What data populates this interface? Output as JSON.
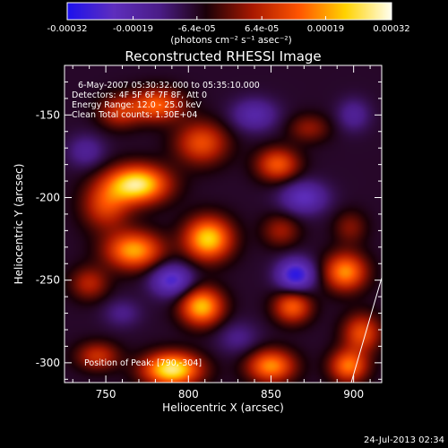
{
  "chart_data": {
    "type": "heatmap",
    "title": "Reconstructed RHESSI Image",
    "xlabel": "Heliocentric X (arcsec)",
    "ylabel": "Heliocentric Y (arcsec)",
    "xlim": [
      725,
      917
    ],
    "ylim": [
      -312,
      -120
    ],
    "x_ticks": [
      750,
      800,
      850,
      900
    ],
    "y_ticks": [
      -300,
      -250,
      -200,
      -150
    ],
    "colorbar": {
      "min": -0.00032,
      "max": 0.00032,
      "tick_labels": [
        "-0.00032",
        "-0.00019",
        "-6.4e-05",
        "6.4e-05",
        "0.00019",
        "0.00032"
      ],
      "unit_label": "(photons cm⁻² s⁻¹ asec⁻²)",
      "stops": [
        "#1c10ee",
        "#5e2ebe",
        "#4a1c86",
        "#1a0008",
        "#a81800",
        "#ff5400",
        "#ffd200",
        "#fffff0"
      ]
    },
    "annotations": [
      "6-May-2007 05:30:32.000 to 05:35:10.000",
      "Detectors: 4F 5F 6F 7F 8F, Att 0",
      "Energy Range: 12.0 - 25.0 keV",
      "Clean     Total counts: 1.30E+04"
    ],
    "peak_label": "Position of Peak: [790,-304]",
    "peak": [
      790,
      -304
    ],
    "sources": [
      {
        "x": 769,
        "y": -192,
        "v": 0.00032,
        "sx": 13,
        "sy": 8
      },
      {
        "x": 750,
        "y": -205,
        "v": 0.00014,
        "sx": 10,
        "sy": 10
      },
      {
        "x": 781,
        "y": -144,
        "v": 0.00018,
        "sx": 11,
        "sy": 7
      },
      {
        "x": 758,
        "y": -148,
        "v": 0.00011,
        "sx": 9,
        "sy": 7
      },
      {
        "x": 808,
        "y": -167,
        "v": 0.00016,
        "sx": 11,
        "sy": 9
      },
      {
        "x": 854,
        "y": -180,
        "v": 0.00017,
        "sx": 9,
        "sy": 7
      },
      {
        "x": 873,
        "y": -158,
        "v": 7e-05,
        "sx": 9,
        "sy": 6
      },
      {
        "x": 812,
        "y": -225,
        "v": 0.00028,
        "sx": 10,
        "sy": 9
      },
      {
        "x": 767,
        "y": -232,
        "v": 0.00024,
        "sx": 12,
        "sy": 8
      },
      {
        "x": 856,
        "y": -220,
        "v": 8e-05,
        "sx": 8,
        "sy": 7
      },
      {
        "x": 898,
        "y": -218,
        "v": 6e-05,
        "sx": 7,
        "sy": 7
      },
      {
        "x": 895,
        "y": -245,
        "v": 0.00022,
        "sx": 9,
        "sy": 8
      },
      {
        "x": 740,
        "y": -252,
        "v": 0.0001,
        "sx": 8,
        "sy": 7
      },
      {
        "x": 808,
        "y": -266,
        "v": 0.00026,
        "sx": 9,
        "sy": 8
      },
      {
        "x": 863,
        "y": -266,
        "v": 0.00018,
        "sx": 8,
        "sy": 7
      },
      {
        "x": 905,
        "y": -282,
        "v": 0.00016,
        "sx": 8,
        "sy": 8
      },
      {
        "x": 745,
        "y": -296,
        "v": 0.00012,
        "sx": 9,
        "sy": 6
      },
      {
        "x": 790,
        "y": -304,
        "v": 0.00032,
        "sx": 12,
        "sy": 7
      },
      {
        "x": 850,
        "y": -302,
        "v": 0.00022,
        "sx": 10,
        "sy": 7
      },
      {
        "x": 897,
        "y": -302,
        "v": 0.0002,
        "sx": 8,
        "sy": 7
      },
      {
        "x": 840,
        "y": -150,
        "v": -0.00015,
        "sx": 10,
        "sy": 7
      },
      {
        "x": 738,
        "y": -172,
        "v": -0.00012,
        "sx": 8,
        "sy": 7
      },
      {
        "x": 870,
        "y": -200,
        "v": -0.00018,
        "sx": 10,
        "sy": 7
      },
      {
        "x": 790,
        "y": -250,
        "v": -0.00022,
        "sx": 9,
        "sy": 7
      },
      {
        "x": 865,
        "y": -247,
        "v": -0.00026,
        "sx": 8,
        "sy": 7
      },
      {
        "x": 830,
        "y": -285,
        "v": -0.0001,
        "sx": 9,
        "sy": 7
      },
      {
        "x": 760,
        "y": -270,
        "v": -0.0001,
        "sx": 8,
        "sy": 6
      },
      {
        "x": 900,
        "y": -150,
        "v": -0.00012,
        "sx": 7,
        "sy": 7
      }
    ]
  },
  "footer": {
    "timestamp": "24-Jul-2013 02:34"
  }
}
